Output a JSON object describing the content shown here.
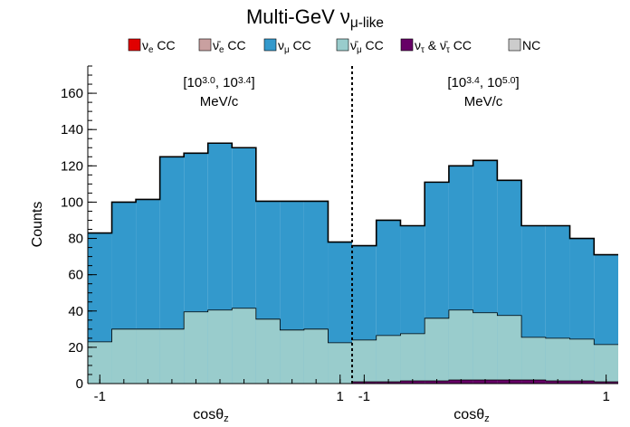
{
  "chart_data": {
    "type": "bar",
    "title": "Multi-GeV  ν_μ-like",
    "ylabel": "Counts",
    "ylim": [
      0,
      175
    ],
    "ytick_labels": [
      "0",
      "20",
      "40",
      "60",
      "80",
      "100",
      "120",
      "140",
      "160"
    ],
    "stacked": true,
    "histogram_steps": true,
    "legend": {
      "position": "top",
      "entries": [
        {
          "key": "nue",
          "text": "ν_e CC",
          "color": "#e00000"
        },
        {
          "key": "nuebar",
          "text": "ν̄_e CC",
          "color": "#c9a0a0"
        },
        {
          "key": "numu",
          "text": "ν_μ CC",
          "color": "#3399cc"
        },
        {
          "key": "numubar",
          "text": "ν̄_μ CC",
          "color": "#99cccc"
        },
        {
          "key": "nutau",
          "text": "ν_τ & ν̄_τ CC",
          "color": "#660066"
        },
        {
          "key": "nc",
          "text": "NC",
          "color": "#cccccc"
        }
      ]
    },
    "panels": [
      {
        "label_line1": "[10^3.0, 10^3.4]",
        "label_line2": "MeV/c",
        "xlabel": "cosθ_z",
        "x_range": [
          -1.1,
          1.1
        ],
        "xtick_labels": [
          "-1",
          "1"
        ],
        "bin_edges": [
          -1.1,
          -0.9,
          -0.7,
          -0.5,
          -0.3,
          -0.1,
          0.1,
          0.3,
          0.5,
          0.7,
          0.9,
          1.1
        ],
        "series": [
          {
            "name": "ν̄_μ CC",
            "color": "#99cccc",
            "values": [
              23,
              30,
              30,
              30,
              39.5,
              40.5,
              41.5,
              35.5,
              29.5,
              30,
              22.5
            ]
          },
          {
            "name": "ν_μ CC",
            "color": "#3399cc",
            "values": [
              60,
              70,
              71.5,
              95,
              87.5,
              92,
              88.5,
              65,
              71,
              70.5,
              55.5
            ]
          },
          {
            "name": "total",
            "color": "#000000",
            "values": [
              83,
              100,
              101.5,
              125,
              127,
              132.5,
              130,
              100.5,
              100.5,
              100.5,
              78
            ]
          }
        ]
      },
      {
        "label_line1": "[10^3.4, 10^5.0]",
        "label_line2": "MeV/c",
        "xlabel": "cosθ_z",
        "x_range": [
          -1.1,
          1.1
        ],
        "xtick_labels": [
          "-1",
          "1"
        ],
        "bin_edges": [
          -1.1,
          -0.9,
          -0.7,
          -0.5,
          -0.3,
          -0.1,
          0.1,
          0.3,
          0.5,
          0.7,
          0.9,
          1.1
        ],
        "series": [
          {
            "name": "ν_τ & ν̄_τ CC",
            "color": "#660066",
            "values": [
              1,
              1,
              1.5,
              1.5,
              2,
              2,
              2,
              2,
              1.5,
              1.5,
              1
            ]
          },
          {
            "name": "ν̄_μ CC",
            "color": "#99cccc",
            "values": [
              23,
              25.5,
              26,
              34.5,
              38.5,
              37,
              35.5,
              23.5,
              23.5,
              23,
              20.5
            ]
          },
          {
            "name": "ν_μ CC",
            "color": "#3399cc",
            "values": [
              52,
              63.5,
              59.5,
              75,
              79.5,
              84,
              74.5,
              61.5,
              62,
              55.5,
              49.5
            ]
          },
          {
            "name": "total",
            "color": "#000000",
            "values": [
              76,
              90,
              87,
              111,
              120,
              123,
              112,
              87,
              87,
              80,
              71
            ]
          }
        ]
      }
    ]
  }
}
